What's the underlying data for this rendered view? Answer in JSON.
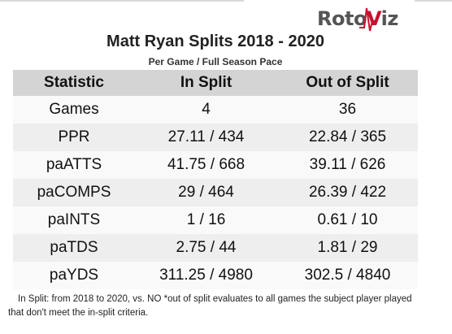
{
  "logo": {
    "text_part1": "Roto",
    "text_accent": "V",
    "text_part2": "iz",
    "accent_color": "#c8102e",
    "icon": "pulse-line-icon"
  },
  "title": "Matt Ryan Splits 2018 - 2020",
  "subtitle": "Per Game / Full Season Pace",
  "table": {
    "headers": [
      "Statistic",
      "In Split",
      "Out of Split"
    ],
    "rows": [
      [
        "Games",
        "4",
        "36"
      ],
      [
        "PPR",
        "27.11 / 434",
        "22.84 / 365"
      ],
      [
        "paATTS",
        "41.75 / 668",
        "39.11 / 626"
      ],
      [
        "paCOMPS",
        "29 / 464",
        "26.39 / 422"
      ],
      [
        "paINTS",
        "1 / 16",
        "0.61 / 10"
      ],
      [
        "paTDS",
        "2.75 / 44",
        "1.81 / 29"
      ],
      [
        "paYDS",
        "311.25 / 4980",
        "302.5 / 4840"
      ]
    ]
  },
  "note": "In Split: from 2018 to 2020, vs. NO *out of split evaluates to all games the subject player played that don't meet the in-split criteria.",
  "colors": {
    "header_bg": "#d4d4d4",
    "row_even_bg": "#eeeeee",
    "row_odd_bg": "#f9f9f9"
  }
}
